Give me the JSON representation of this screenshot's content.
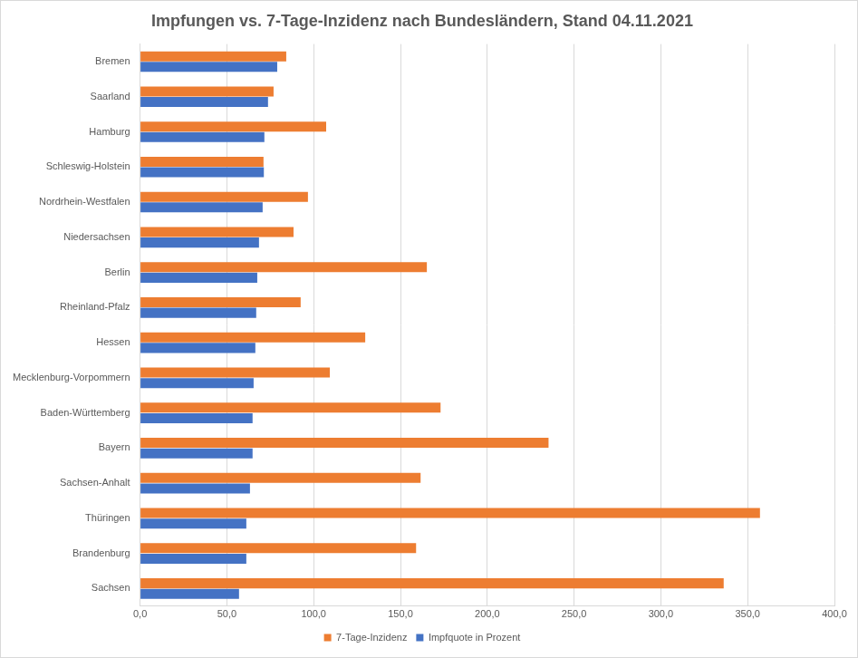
{
  "chart_data": {
    "type": "bar",
    "orientation": "horizontal",
    "title": "Impfungen vs. 7-Tage-Inzidenz nach Bundesländern, Stand 04.11.2021",
    "categories": [
      "Bremen",
      "Saarland",
      "Hamburg",
      "Schleswig-Holstein",
      "Nordrhein-Westfalen",
      "Niedersachsen",
      "Berlin",
      "Rheinland-Pfalz",
      "Hessen",
      "Mecklenburg-Vorpommern",
      "Baden-Württemberg",
      "Bayern",
      "Sachsen-Anhalt",
      "Thüringen",
      "Brandenburg",
      "Sachsen"
    ],
    "series": [
      {
        "name": "7-Tage-Inzidenz",
        "color": "#ed7d31",
        "values": [
          84.2,
          76.9,
          107.2,
          71.1,
          96.7,
          88.4,
          165.2,
          92.5,
          129.7,
          109.3,
          173.1,
          235.3,
          161.6,
          357.1,
          159.0,
          336.2
        ]
      },
      {
        "name": "Impfquote in Prozent",
        "color": "#4472c4",
        "values": [
          79.0,
          73.7,
          71.6,
          71.3,
          70.6,
          68.5,
          67.5,
          66.9,
          66.4,
          65.4,
          64.8,
          64.8,
          63.3,
          61.2,
          61.2,
          57.0
        ]
      }
    ],
    "xlim": [
      0,
      400
    ],
    "xticks": [
      {
        "value": 0,
        "label": "0,0"
      },
      {
        "value": 50,
        "label": "50,0"
      },
      {
        "value": 100,
        "label": "100,0"
      },
      {
        "value": 150,
        "label": "150,0"
      },
      {
        "value": 200,
        "label": "200,0"
      },
      {
        "value": 250,
        "label": "250,0"
      },
      {
        "value": 300,
        "label": "300,0"
      },
      {
        "value": 350,
        "label": "350,0"
      },
      {
        "value": 400,
        "label": "400,0"
      }
    ],
    "grid": true,
    "legend": "bottom"
  }
}
